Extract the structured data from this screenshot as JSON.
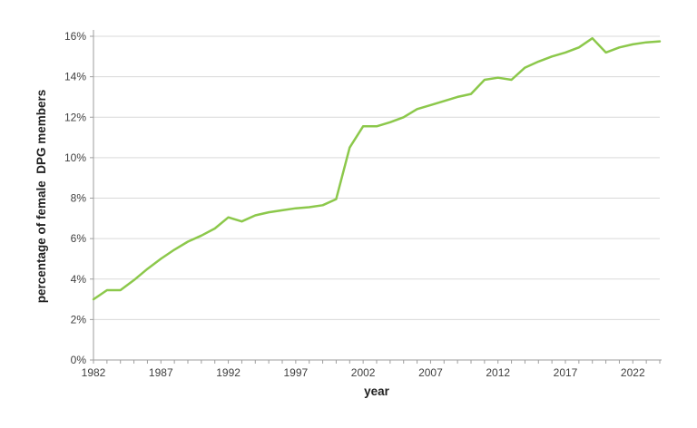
{
  "chart_data": {
    "type": "line",
    "title": "",
    "xlabel": "year",
    "ylabel": "percentage of female  DPG members",
    "x": [
      1982,
      1983,
      1984,
      1985,
      1986,
      1987,
      1988,
      1989,
      1990,
      1991,
      1992,
      1993,
      1994,
      1995,
      1996,
      1997,
      1998,
      1999,
      2000,
      2001,
      2002,
      2003,
      2004,
      2005,
      2006,
      2007,
      2008,
      2009,
      2010,
      2011,
      2012,
      2013,
      2014,
      2015,
      2016,
      2017,
      2018,
      2019,
      2020,
      2021,
      2022,
      2023,
      2024
    ],
    "values": [
      3.0,
      3.45,
      3.45,
      3.95,
      4.5,
      5.0,
      5.45,
      5.85,
      6.15,
      6.5,
      7.05,
      6.85,
      7.15,
      7.3,
      7.4,
      7.5,
      7.55,
      7.65,
      7.95,
      10.5,
      11.55,
      11.55,
      11.75,
      12.0,
      12.4,
      12.6,
      12.8,
      13.0,
      13.15,
      13.85,
      13.95,
      13.85,
      14.45,
      14.75,
      15.0,
      15.2,
      15.45,
      15.9,
      15.2,
      15.45,
      15.6,
      15.7,
      15.75
    ],
    "series_name": "percentage of female DPG members",
    "xlim": [
      1982,
      2024
    ],
    "ylim": [
      0,
      16
    ],
    "y_tick_step": 2,
    "y_tick_labels": [
      "0%",
      "2%",
      "4%",
      "6%",
      "8%",
      "10%",
      "12%",
      "14%",
      "16%"
    ],
    "x_tick_step_minor": 1,
    "x_tick_label_step": 5,
    "x_tick_labels": [
      "1982",
      "1987",
      "1992",
      "1997",
      "2002",
      "2007",
      "2012",
      "2017",
      "2022"
    ],
    "grid": "horizontal",
    "legend": "none",
    "colors": {
      "line": "#8cc84b",
      "gridline": "#d9d9d9",
      "axis": "#9e9e9e",
      "tick_label": "#3f3f3f",
      "axis_title": "#212121",
      "background": "#ffffff"
    }
  }
}
